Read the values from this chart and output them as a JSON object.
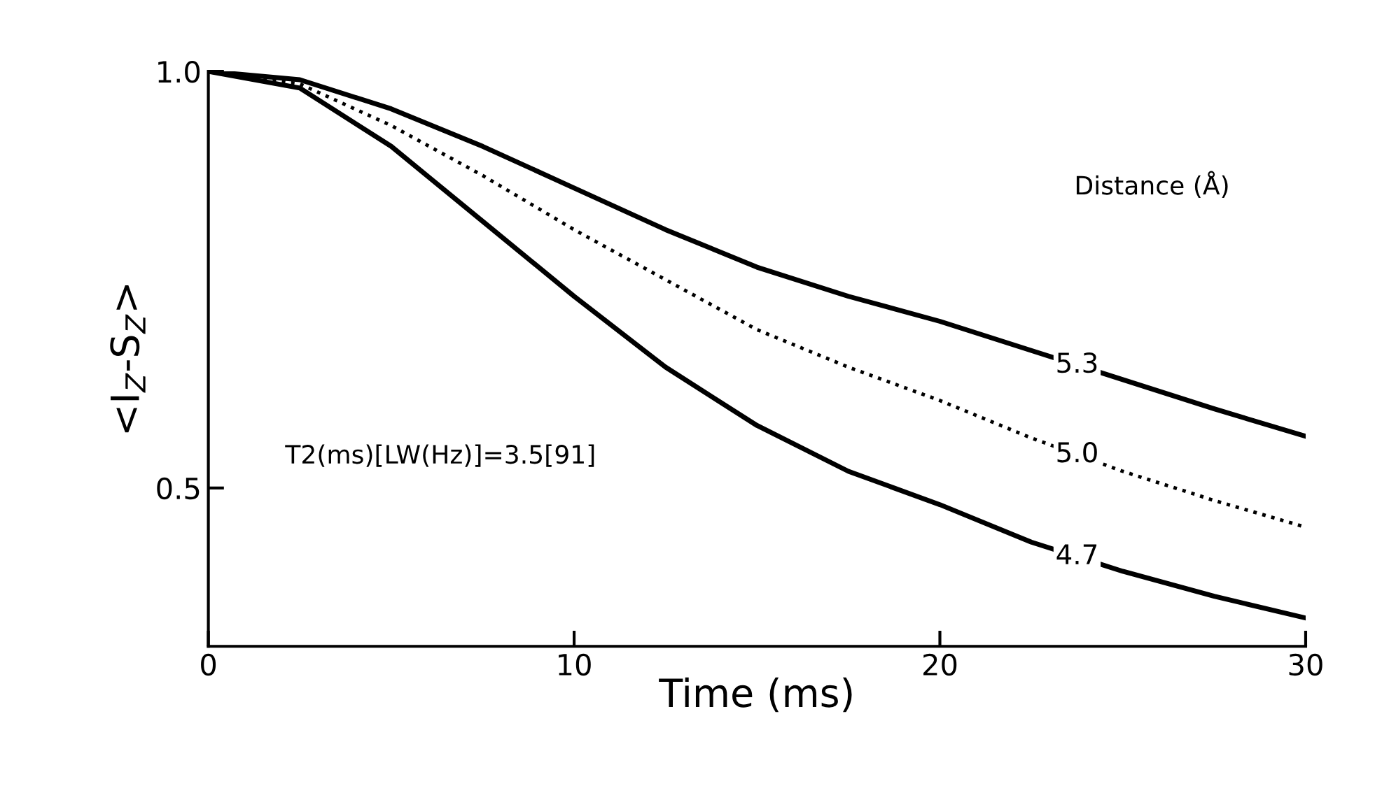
{
  "chart_data": {
    "type": "line",
    "xlabel": "Time (ms)",
    "ylabel": "<I$_{Z}$-S$_{Z}$>",
    "legend_title": "Distance (Å)",
    "annotations": [
      "T2(ms)[LW(Hz)]=3.5[91]"
    ],
    "x": [
      0,
      2.5,
      5,
      7.5,
      10,
      12.5,
      15,
      17.5,
      20,
      22.5,
      25,
      27.5,
      30
    ],
    "series": [
      {
        "name": "5.3",
        "color": "#000000",
        "line_style": "solid",
        "values": [
          1.0,
          0.99,
          0.955,
          0.91,
          0.86,
          0.81,
          0.765,
          0.73,
          0.7,
          0.665,
          0.63,
          0.595,
          0.562
        ]
      },
      {
        "name": "5.0",
        "color": "#000000",
        "line_style": "dotted",
        "values": [
          1.0,
          0.985,
          0.935,
          0.875,
          0.81,
          0.75,
          0.69,
          0.645,
          0.605,
          0.56,
          0.52,
          0.485,
          0.453
        ]
      },
      {
        "name": "4.7",
        "color": "#000000",
        "line_style": "solid",
        "values": [
          1.0,
          0.98,
          0.91,
          0.82,
          0.73,
          0.645,
          0.575,
          0.52,
          0.48,
          0.435,
          0.4,
          0.37,
          0.344
        ]
      }
    ],
    "xlim": [
      0,
      30
    ],
    "ylim": [
      0.31,
      1.0
    ],
    "xticks": [
      0,
      10,
      20,
      30
    ],
    "yticks": [
      0.5,
      {
        "value": 1.0,
        "label": "1.0"
      }
    ],
    "grid": false,
    "legend": false,
    "marker": "none"
  }
}
